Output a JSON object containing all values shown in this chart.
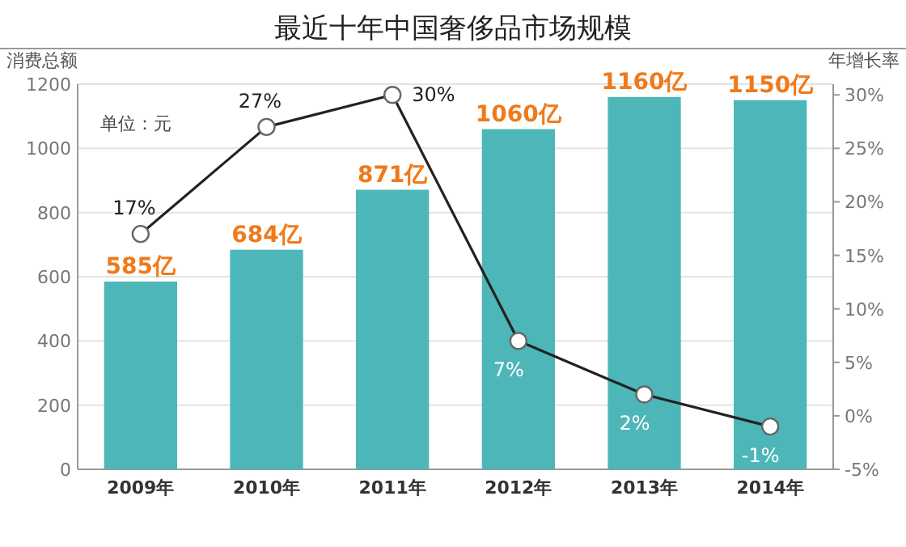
{
  "chart_data": {
    "type": "bar",
    "title": "最近十年中国奢侈品市场规模",
    "ylabel": "消费总额",
    "y2label": "年增长率",
    "annotations": [
      "单位：元"
    ],
    "categories": [
      "2009年",
      "2010年",
      "2011年",
      "2012年",
      "2013年",
      "2014年"
    ],
    "series": [
      {
        "type": "bar",
        "color": "#4db6b8",
        "values": [
          585,
          684,
          871,
          1060,
          1160,
          1150
        ],
        "value_labels": [
          "585亿",
          "684亿",
          "871亿",
          "1060亿",
          "1160亿",
          "1150亿"
        ]
      },
      {
        "type": "line",
        "axis": "y2",
        "color": "#222222",
        "values": [
          17,
          27,
          30,
          7,
          2,
          -1
        ],
        "value_labels": [
          "17%",
          "27%",
          "30%",
          "7%",
          "2%",
          "-1%"
        ]
      }
    ],
    "ylim": [
      0,
      1200
    ],
    "yticks": [
      0,
      200,
      400,
      600,
      800,
      1000,
      1200
    ],
    "y2lim": [
      -5,
      31
    ],
    "y2ticks": [
      {
        "value": -5,
        "label": "-5%"
      },
      {
        "value": 0,
        "label": "0%"
      },
      {
        "value": 5,
        "label": "5%"
      },
      {
        "value": 10,
        "label": "10%"
      },
      {
        "value": 15,
        "label": "15%"
      },
      {
        "value": 20,
        "label": "20%"
      },
      {
        "value": 25,
        "label": "25%"
      },
      {
        "value": 30,
        "label": "30%"
      }
    ],
    "grid": "y",
    "marker": "circle"
  }
}
